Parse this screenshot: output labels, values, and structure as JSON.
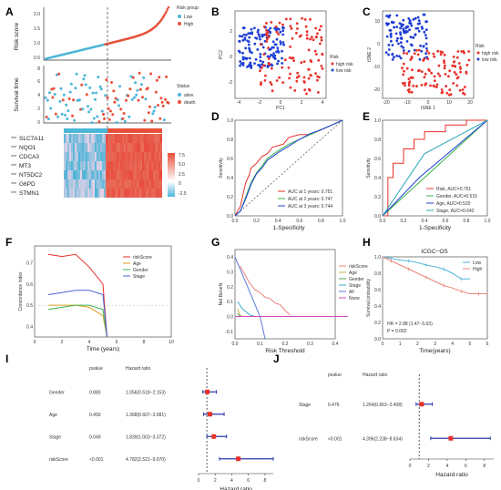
{
  "panels": {
    "A": "A",
    "B": "B",
    "C": "C",
    "D": "D",
    "E": "E",
    "F": "F",
    "G": "G",
    "H": "H",
    "I": "I",
    "J": "J"
  },
  "riskA": {
    "ylabel": "Risk score",
    "yticks": [
      "0.5",
      "1.0",
      "1.5",
      "2.0"
    ],
    "legend_title": "Risk group",
    "groups": [
      {
        "label": "Low",
        "color": "#4db6d8"
      },
      {
        "label": "High",
        "color": "#e8503a"
      }
    ],
    "n_low": 58,
    "n_high": 62
  },
  "survA": {
    "ylabel": "Survival time",
    "yticks": [
      "0",
      "2",
      "4",
      "6",
      "8"
    ],
    "legend_title": "Status",
    "statuses": [
      {
        "label": "alive",
        "color": "#4db6d8"
      },
      {
        "label": "death",
        "color": "#e8503a"
      }
    ]
  },
  "heatA": {
    "genes": [
      "SLC7A11",
      "NQO1",
      "CDCA3",
      "MT3",
      "NT5DC2",
      "G6PD",
      "STMN1"
    ],
    "stars": [
      "***",
      "***",
      "***",
      "***",
      "***",
      "***",
      "***"
    ],
    "scale": [
      "7.5",
      "5.0",
      "2.5",
      "0",
      "-2.5"
    ]
  },
  "pca": {
    "xlabel": "PC1",
    "ylabel": "PC2",
    "legend_title": "Risk",
    "legend": [
      "high risk",
      "low risk"
    ],
    "xticks": [
      "-4",
      "-2",
      "0",
      "2",
      "4"
    ],
    "yticks": [
      "-2",
      "0",
      "2"
    ]
  },
  "tsne": {
    "xlabel": "tSNE 1",
    "ylabel": "tSNE 2",
    "legend_title": "Risk",
    "legend": [
      "high risk",
      "low risk"
    ],
    "xticks": [
      "-20",
      "-10",
      "0",
      "10",
      "20"
    ],
    "yticks": [
      "-20",
      "-10",
      "0",
      "10"
    ]
  },
  "chart_data": [
    {
      "type": "line",
      "id": "D",
      "xlabel": "1-Specificity",
      "ylabel": "Sensitivity",
      "xlim": [
        0,
        1
      ],
      "ylim": [
        0,
        1
      ],
      "xticks": [
        "0.0",
        "0.2",
        "0.4",
        "0.6",
        "0.8",
        "1.0"
      ],
      "yticks": [
        "0.0",
        "0.2",
        "0.4",
        "0.6",
        "0.8",
        "1.0"
      ],
      "series": [
        {
          "name": "AUC at 1 years: 0.751",
          "color": "#e8312a",
          "x": [
            0,
            0.05,
            0.08,
            0.1,
            0.13,
            0.15,
            0.2,
            0.25,
            0.3,
            0.35,
            0.45,
            0.5,
            0.6,
            0.7,
            0.8,
            0.9,
            1
          ],
          "y": [
            0,
            0.1,
            0.25,
            0.35,
            0.42,
            0.5,
            0.55,
            0.62,
            0.65,
            0.72,
            0.75,
            0.82,
            0.85,
            0.85,
            0.9,
            0.95,
            1
          ]
        },
        {
          "name": "AUC at 2 years: 0.747",
          "color": "#3cb44b",
          "x": [
            0,
            0.05,
            0.1,
            0.15,
            0.2,
            0.25,
            0.3,
            0.4,
            0.5,
            0.6,
            0.7,
            0.8,
            0.9,
            1
          ],
          "y": [
            0,
            0.05,
            0.2,
            0.35,
            0.45,
            0.52,
            0.6,
            0.68,
            0.75,
            0.8,
            0.85,
            0.9,
            0.95,
            1
          ]
        },
        {
          "name": "AUC at 3 years: 0.744",
          "color": "#1f3fd6",
          "x": [
            0,
            0.05,
            0.1,
            0.15,
            0.2,
            0.25,
            0.3,
            0.4,
            0.5,
            0.6,
            0.7,
            0.8,
            0.9,
            1
          ],
          "y": [
            0,
            0.05,
            0.18,
            0.33,
            0.44,
            0.5,
            0.58,
            0.66,
            0.73,
            0.8,
            0.86,
            0.9,
            0.95,
            1
          ]
        }
      ]
    },
    {
      "type": "line",
      "id": "E",
      "xlabel": "1-Specificity",
      "ylabel": "Sensitivity",
      "xlim": [
        0,
        1
      ],
      "ylim": [
        0,
        1
      ],
      "xticks": [
        "0.0",
        "0.2",
        "0.4",
        "0.6",
        "0.8",
        "1.0"
      ],
      "yticks": [
        "0.0",
        "0.2",
        "0.4",
        "0.6",
        "0.8",
        "1.0"
      ],
      "series": [
        {
          "name": "Risk, AUC=0.751",
          "color": "#e8312a",
          "x": [
            0,
            0.05,
            0.05,
            0.1,
            0.1,
            0.2,
            0.2,
            0.3,
            0.3,
            0.4,
            0.4,
            0.6,
            0.6,
            0.8,
            0.8,
            1
          ],
          "y": [
            0,
            0,
            0.4,
            0.4,
            0.55,
            0.55,
            0.7,
            0.7,
            0.8,
            0.8,
            0.88,
            0.88,
            0.95,
            0.95,
            1,
            1
          ]
        },
        {
          "name": "Gender, AUC=0.515",
          "color": "#3cb44b",
          "x": [
            0,
            0.45,
            1
          ],
          "y": [
            0,
            0.45,
            1
          ]
        },
        {
          "name": "Age, AUC=0.520",
          "color": "#1f3fd6",
          "x": [
            0,
            0.35,
            1
          ],
          "y": [
            0,
            0.4,
            1
          ]
        },
        {
          "name": "Stage, AUC=0.642",
          "color": "#2aa7b8",
          "x": [
            0,
            0.4,
            1
          ],
          "y": [
            0,
            0.65,
            1
          ]
        }
      ]
    },
    {
      "type": "line",
      "id": "F",
      "xlabel": "Time (years)",
      "ylabel": "Concordance index",
      "xlim": [
        0,
        10
      ],
      "ylim": [
        0.35,
        0.78
      ],
      "xticks": [
        "0",
        "2",
        "4",
        "6",
        "8",
        "10"
      ],
      "yticks": [
        "0.4",
        "0.5",
        "0.6",
        "0.7"
      ],
      "series": [
        {
          "name": "riskScore",
          "color": "#e8312a",
          "x": [
            1,
            2,
            3,
            4,
            5,
            5.3
          ],
          "y": [
            0.74,
            0.73,
            0.74,
            0.68,
            0.6,
            0.35
          ]
        },
        {
          "name": "Age",
          "color": "#e0a020",
          "x": [
            1,
            2,
            3,
            4,
            5,
            5.3
          ],
          "y": [
            0.5,
            0.5,
            0.5,
            0.49,
            0.45,
            0.35
          ]
        },
        {
          "name": "Gender",
          "color": "#3cb44b",
          "x": [
            1,
            2,
            3,
            4,
            5,
            5.3
          ],
          "y": [
            0.48,
            0.49,
            0.5,
            0.5,
            0.48,
            0.35
          ]
        },
        {
          "name": "Stage",
          "color": "#4a66d8",
          "x": [
            1,
            2,
            3,
            4,
            5,
            5.3
          ],
          "y": [
            0.55,
            0.56,
            0.57,
            0.57,
            0.55,
            0.35
          ]
        }
      ]
    },
    {
      "type": "line",
      "id": "G",
      "xlabel": "Risk Threshold",
      "ylabel": "Net Benefit",
      "xlim": [
        0,
        0.4
      ],
      "ylim": [
        -0.15,
        0.45
      ],
      "xticks": [
        "0.0",
        "0.1",
        "0.2",
        "0.3",
        "0.4"
      ],
      "yticks": [
        "-0.1",
        "0.0",
        "0.1",
        "0.2",
        "0.3",
        "0.4"
      ],
      "series": [
        {
          "name": "riskScore",
          "color": "#e8857a",
          "x": [
            0.02,
            0.04,
            0.06,
            0.08,
            0.1,
            0.12,
            0.14,
            0.16,
            0.18,
            0.2,
            0.22
          ],
          "y": [
            0.34,
            0.28,
            0.22,
            0.18,
            0.16,
            0.13,
            0.12,
            0.09,
            0.08,
            0.04,
            0.01
          ]
        },
        {
          "name": "Age",
          "color": "#c8b44a",
          "x": [
            0.01,
            0.02,
            0.03
          ],
          "y": [
            0.05,
            0.01,
            0.0
          ]
        },
        {
          "name": "Gender",
          "color": "#52a55a",
          "x": [
            0.01,
            0.02
          ],
          "y": [
            0.02,
            0.0
          ]
        },
        {
          "name": "Stage",
          "color": "#3ab0c8",
          "x": [
            0.01,
            0.03,
            0.06,
            0.08
          ],
          "y": [
            0.1,
            0.05,
            0.01,
            0.0
          ]
        },
        {
          "name": "All",
          "color": "#5a7ad8",
          "x": [
            0.0,
            0.05,
            0.1,
            0.12
          ],
          "y": [
            0.4,
            0.2,
            0.0,
            -0.15
          ]
        },
        {
          "name": "None",
          "color": "#d04ac0",
          "x": [
            0.0,
            0.45
          ],
          "y": [
            0.0,
            0.0
          ]
        }
      ]
    },
    {
      "type": "line",
      "id": "H",
      "title": "ICGC−OS",
      "xlabel": "Time(years)",
      "ylabel": "Survival probability",
      "xlim": [
        0,
        6
      ],
      "ylim": [
        0,
        1
      ],
      "xticks": [
        "0",
        "1",
        "2",
        "3",
        "4",
        "5",
        "6"
      ],
      "yticks": [
        "0.0",
        "0.2",
        "0.4",
        "0.6",
        "0.8",
        "1.0"
      ],
      "annotation": [
        "HR = 2.88 (1.47−5.63)",
        "P = 0.002"
      ],
      "series": [
        {
          "name": "Low",
          "color": "#4db6d8",
          "x": [
            0,
            0.5,
            1,
            1.5,
            2,
            2.5,
            3,
            3.5,
            4,
            4.5,
            5
          ],
          "y": [
            1,
            0.98,
            0.96,
            0.95,
            0.93,
            0.9,
            0.88,
            0.85,
            0.8,
            0.73,
            0.73
          ]
        },
        {
          "name": "High",
          "color": "#e8857a",
          "x": [
            0,
            0.5,
            1,
            1.5,
            2,
            2.5,
            3,
            3.5,
            4,
            4.5,
            5,
            5.5,
            6
          ],
          "y": [
            1,
            0.95,
            0.9,
            0.85,
            0.8,
            0.75,
            0.7,
            0.65,
            0.62,
            0.58,
            0.55,
            0.55,
            0.55
          ]
        }
      ]
    },
    {
      "type": "table",
      "id": "I",
      "xlabel": "Hazard ratio",
      "headers": [
        "pvalue",
        "Hazard ratio"
      ],
      "xlim": [
        0,
        9
      ],
      "xticks": [
        "0",
        "2",
        "4",
        "6",
        "8"
      ],
      "rows": [
        {
          "label": "Gender",
          "pvalue": "0.880",
          "hr_text": "1.056(0.518−2.153)",
          "hr": 1.056,
          "lo": 0.518,
          "hi": 2.153
        },
        {
          "label": "Age",
          "pvalue": "0.450",
          "hr_text": "1.368(0.607−3.081)",
          "hr": 1.368,
          "lo": 0.607,
          "hi": 3.081
        },
        {
          "label": "Stage",
          "pvalue": "0.049",
          "hr_text": "1.839(1.003−3.372)",
          "hr": 1.839,
          "lo": 1.003,
          "hi": 3.372
        },
        {
          "label": "riskScore",
          "pvalue": "<0.001",
          "hr_text": "4.782(2.521−9.070)",
          "hr": 4.782,
          "lo": 2.521,
          "hi": 9.07
        }
      ]
    },
    {
      "type": "table",
      "id": "J",
      "xlabel": "Hazard ratio",
      "headers": [
        "pvalue",
        "Hazard ratio"
      ],
      "xlim": [
        0,
        9
      ],
      "xticks": [
        "0",
        "2",
        "4",
        "6",
        "8"
      ],
      "rows": [
        {
          "label": "Stage",
          "pvalue": "0.476",
          "hr_text": "1.264(0.663−2.408)",
          "hr": 1.264,
          "lo": 0.663,
          "hi": 2.408
        },
        {
          "label": "riskScore",
          "pvalue": "<0.001",
          "hr_text": "4.396(2.238−8.634)",
          "hr": 4.396,
          "lo": 2.238,
          "hi": 8.634
        }
      ]
    }
  ]
}
